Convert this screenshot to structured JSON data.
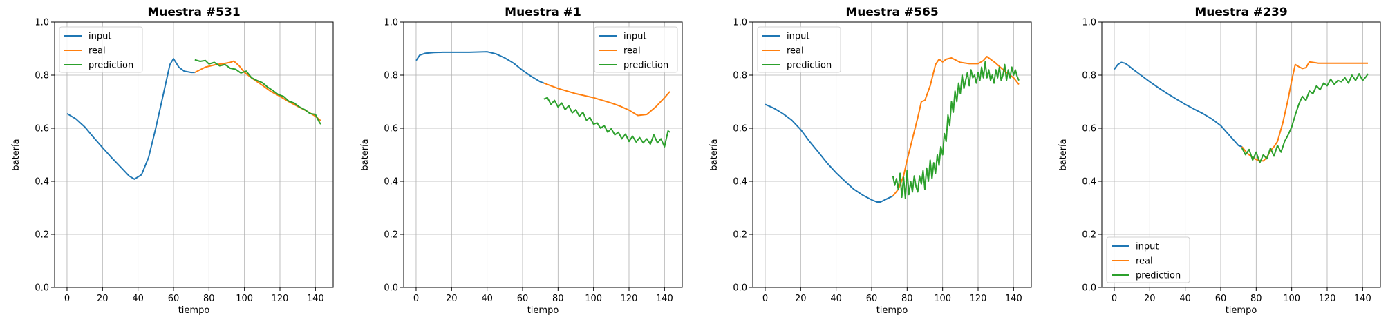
{
  "colors": {
    "input": "#1f77b4",
    "real": "#ff7f0e",
    "prediction": "#2ca02c",
    "grid": "#b0b0b0"
  },
  "chart_data": [
    {
      "type": "line",
      "title": "Muestra #531",
      "xlabel": "tiempo",
      "ylabel": "batería",
      "xlim": [
        -7,
        150
      ],
      "ylim": [
        0,
        1.0
      ],
      "xticks": [
        "0",
        "20",
        "40",
        "60",
        "80",
        "100",
        "120",
        "140"
      ],
      "yticks": [
        "0.0",
        "0.2",
        "0.4",
        "0.6",
        "0.8",
        "1.0"
      ],
      "grid": true,
      "legend_loc": "upper left",
      "series": [
        {
          "name": "input",
          "x": [
            0,
            5,
            10,
            15,
            20,
            25,
            30,
            35,
            38,
            42,
            46,
            50,
            54,
            58,
            60,
            63,
            66,
            70,
            72
          ],
          "y": [
            0.655,
            0.635,
            0.605,
            0.565,
            0.527,
            0.49,
            0.455,
            0.42,
            0.408,
            0.425,
            0.49,
            0.6,
            0.72,
            0.84,
            0.862,
            0.83,
            0.815,
            0.81,
            0.81
          ]
        },
        {
          "name": "real",
          "x": [
            72,
            78,
            84,
            88,
            92,
            94,
            97,
            100,
            105,
            110,
            115,
            120,
            125,
            130,
            135,
            140,
            143
          ],
          "y": [
            0.81,
            0.83,
            0.84,
            0.843,
            0.848,
            0.853,
            0.835,
            0.81,
            0.785,
            0.762,
            0.738,
            0.72,
            0.7,
            0.682,
            0.665,
            0.645,
            0.628
          ]
        },
        {
          "name": "prediction",
          "x": [
            72,
            75,
            78,
            80,
            83,
            86,
            89,
            92,
            95,
            98,
            101,
            104,
            107,
            110,
            113,
            116,
            119,
            122,
            125,
            128,
            131,
            134,
            137,
            140,
            142,
            143
          ],
          "y": [
            0.858,
            0.852,
            0.855,
            0.842,
            0.848,
            0.835,
            0.84,
            0.826,
            0.822,
            0.808,
            0.815,
            0.79,
            0.78,
            0.772,
            0.755,
            0.742,
            0.727,
            0.72,
            0.702,
            0.695,
            0.68,
            0.67,
            0.655,
            0.652,
            0.625,
            0.615
          ]
        }
      ]
    },
    {
      "type": "line",
      "title": "Muestra #1",
      "xlabel": "tiempo",
      "ylabel": "batería",
      "xlim": [
        -7,
        150
      ],
      "ylim": [
        0,
        1.0
      ],
      "xticks": [
        "0",
        "20",
        "40",
        "60",
        "80",
        "100",
        "120",
        "140"
      ],
      "yticks": [
        "0.0",
        "0.2",
        "0.4",
        "0.6",
        "0.8",
        "1.0"
      ],
      "grid": true,
      "legend_loc": "upper right",
      "series": [
        {
          "name": "input",
          "x": [
            0,
            2,
            5,
            10,
            15,
            20,
            25,
            30,
            35,
            40,
            45,
            50,
            55,
            60,
            65,
            70,
            72
          ],
          "y": [
            0.855,
            0.875,
            0.882,
            0.885,
            0.886,
            0.886,
            0.886,
            0.886,
            0.887,
            0.888,
            0.88,
            0.865,
            0.845,
            0.818,
            0.795,
            0.775,
            0.77
          ]
        },
        {
          "name": "real",
          "x": [
            72,
            80,
            90,
            100,
            110,
            115,
            120,
            125,
            130,
            135,
            140,
            143
          ],
          "y": [
            0.77,
            0.75,
            0.73,
            0.715,
            0.695,
            0.683,
            0.668,
            0.648,
            0.652,
            0.68,
            0.715,
            0.738
          ]
        },
        {
          "name": "prediction",
          "x": [
            72,
            74,
            76,
            78,
            80,
            82,
            84,
            86,
            88,
            90,
            92,
            94,
            96,
            98,
            100,
            102,
            104,
            106,
            108,
            110,
            112,
            114,
            116,
            118,
            120,
            122,
            124,
            126,
            128,
            130,
            132,
            134,
            136,
            138,
            140,
            142,
            143
          ],
          "y": [
            0.71,
            0.715,
            0.69,
            0.705,
            0.68,
            0.695,
            0.67,
            0.685,
            0.658,
            0.67,
            0.645,
            0.66,
            0.63,
            0.64,
            0.615,
            0.62,
            0.6,
            0.61,
            0.585,
            0.598,
            0.575,
            0.585,
            0.56,
            0.578,
            0.55,
            0.57,
            0.548,
            0.565,
            0.545,
            0.56,
            0.54,
            0.575,
            0.545,
            0.56,
            0.53,
            0.59,
            0.585
          ]
        }
      ]
    },
    {
      "type": "line",
      "title": "Muestra #565",
      "xlabel": "tiempo",
      "ylabel": "batería",
      "xlim": [
        -7,
        150
      ],
      "ylim": [
        0,
        1.0
      ],
      "xticks": [
        "0",
        "20",
        "40",
        "60",
        "80",
        "100",
        "120",
        "140"
      ],
      "yticks": [
        "0.0",
        "0.2",
        "0.4",
        "0.6",
        "0.8",
        "1.0"
      ],
      "grid": true,
      "legend_loc": "upper left",
      "series": [
        {
          "name": "input",
          "x": [
            0,
            5,
            10,
            15,
            20,
            25,
            30,
            35,
            40,
            45,
            50,
            55,
            60,
            63,
            65,
            68,
            72
          ],
          "y": [
            0.69,
            0.675,
            0.655,
            0.63,
            0.595,
            0.55,
            0.51,
            0.468,
            0.432,
            0.4,
            0.37,
            0.348,
            0.33,
            0.322,
            0.322,
            0.332,
            0.345
          ]
        },
        {
          "name": "real",
          "x": [
            72,
            75,
            78,
            80,
            83,
            86,
            88,
            90,
            93,
            96,
            98,
            100,
            102,
            105,
            110,
            115,
            120,
            123,
            125,
            127,
            130,
            135,
            140,
            143
          ],
          "y": [
            0.345,
            0.37,
            0.42,
            0.48,
            0.56,
            0.64,
            0.7,
            0.705,
            0.76,
            0.84,
            0.86,
            0.85,
            0.86,
            0.865,
            0.848,
            0.843,
            0.843,
            0.855,
            0.87,
            0.86,
            0.845,
            0.815,
            0.79,
            0.765
          ]
        },
        {
          "name": "prediction",
          "x": [
            72,
            73,
            74,
            75,
            76,
            77,
            78,
            79,
            80,
            81,
            82,
            83,
            84,
            85,
            86,
            87,
            88,
            89,
            90,
            91,
            92,
            93,
            94,
            95,
            96,
            97,
            98,
            99,
            100,
            101,
            102,
            103,
            104,
            105,
            106,
            107,
            108,
            109,
            110,
            111,
            112,
            113,
            114,
            115,
            116,
            117,
            118,
            119,
            120,
            121,
            122,
            123,
            124,
            125,
            126,
            127,
            128,
            129,
            130,
            131,
            132,
            133,
            134,
            135,
            136,
            137,
            138,
            139,
            140,
            141,
            142,
            143
          ],
          "y": [
            0.42,
            0.385,
            0.41,
            0.37,
            0.43,
            0.34,
            0.415,
            0.335,
            0.44,
            0.35,
            0.4,
            0.36,
            0.42,
            0.38,
            0.36,
            0.42,
            0.39,
            0.44,
            0.37,
            0.45,
            0.4,
            0.48,
            0.41,
            0.47,
            0.43,
            0.5,
            0.46,
            0.53,
            0.5,
            0.58,
            0.55,
            0.65,
            0.61,
            0.7,
            0.66,
            0.74,
            0.7,
            0.77,
            0.73,
            0.8,
            0.75,
            0.78,
            0.81,
            0.76,
            0.82,
            0.79,
            0.8,
            0.77,
            0.81,
            0.78,
            0.83,
            0.79,
            0.85,
            0.79,
            0.82,
            0.78,
            0.8,
            0.77,
            0.82,
            0.79,
            0.83,
            0.78,
            0.8,
            0.84,
            0.78,
            0.82,
            0.79,
            0.83,
            0.8,
            0.82,
            0.795,
            0.78
          ]
        }
      ]
    },
    {
      "type": "line",
      "title": "Muestra #239",
      "xlabel": "tiempo",
      "ylabel": "batería",
      "xlim": [
        -7,
        150
      ],
      "ylim": [
        0,
        1.0
      ],
      "xticks": [
        "0",
        "20",
        "40",
        "60",
        "80",
        "100",
        "120",
        "140"
      ],
      "yticks": [
        "0.0",
        "0.2",
        "0.4",
        "0.6",
        "0.8",
        "1.0"
      ],
      "grid": true,
      "legend_loc": "lower left",
      "series": [
        {
          "name": "input",
          "x": [
            0,
            2,
            4,
            6,
            8,
            10,
            15,
            20,
            25,
            30,
            35,
            40,
            45,
            50,
            55,
            60,
            64,
            66,
            68,
            70,
            72
          ],
          "y": [
            0.822,
            0.84,
            0.848,
            0.845,
            0.836,
            0.825,
            0.8,
            0.775,
            0.752,
            0.73,
            0.71,
            0.69,
            0.672,
            0.655,
            0.635,
            0.61,
            0.58,
            0.565,
            0.55,
            0.535,
            0.53
          ]
        },
        {
          "name": "real",
          "x": [
            72,
            75,
            78,
            80,
            82,
            84,
            86,
            88,
            90,
            92,
            95,
            98,
            100,
            102,
            104,
            106,
            108,
            110,
            115,
            120,
            125,
            130,
            135,
            140,
            143
          ],
          "y": [
            0.53,
            0.505,
            0.49,
            0.482,
            0.478,
            0.477,
            0.49,
            0.515,
            0.53,
            0.55,
            0.62,
            0.71,
            0.78,
            0.84,
            0.832,
            0.825,
            0.828,
            0.85,
            0.845,
            0.845,
            0.845,
            0.845,
            0.845,
            0.845,
            0.845
          ]
        },
        {
          "name": "prediction",
          "x": [
            72,
            74,
            76,
            78,
            80,
            82,
            84,
            86,
            88,
            90,
            92,
            94,
            96,
            98,
            100,
            102,
            104,
            106,
            108,
            110,
            112,
            114,
            116,
            118,
            120,
            122,
            124,
            126,
            128,
            130,
            132,
            134,
            136,
            138,
            140,
            142,
            143
          ],
          "y": [
            0.525,
            0.5,
            0.52,
            0.48,
            0.51,
            0.47,
            0.5,
            0.485,
            0.525,
            0.495,
            0.535,
            0.51,
            0.55,
            0.575,
            0.605,
            0.65,
            0.69,
            0.72,
            0.705,
            0.74,
            0.73,
            0.76,
            0.745,
            0.77,
            0.76,
            0.785,
            0.765,
            0.78,
            0.775,
            0.79,
            0.77,
            0.8,
            0.78,
            0.805,
            0.78,
            0.795,
            0.805
          ]
        }
      ]
    }
  ]
}
